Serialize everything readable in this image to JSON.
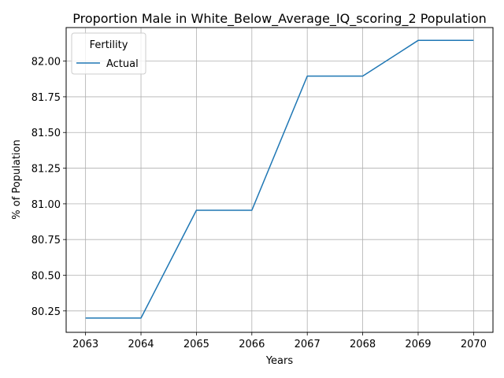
{
  "chart_data": {
    "type": "line",
    "title": "Proportion Male in White_Below_Average_IQ_scoring_2 Population",
    "xlabel": "Years",
    "ylabel": "% of Population",
    "x": [
      2063,
      2064,
      2065,
      2066,
      2067,
      2068,
      2069,
      2070
    ],
    "xticks": [
      "2063",
      "2064",
      "2065",
      "2066",
      "2067",
      "2068",
      "2069",
      "2070"
    ],
    "yticks": [
      "80.25",
      "80.50",
      "80.75",
      "81.00",
      "81.25",
      "81.50",
      "81.75",
      "82.00"
    ],
    "xlim": [
      2062.65,
      2070.35
    ],
    "ylim": [
      80.1,
      82.235
    ],
    "grid": true,
    "legend": {
      "title": "Fertility",
      "placement": "upper-left"
    },
    "series": [
      {
        "name": "Actual",
        "color": "#1f77b4",
        "values": [
          80.2,
          80.2,
          80.955,
          80.955,
          81.895,
          81.895,
          82.145,
          82.145
        ]
      }
    ]
  }
}
